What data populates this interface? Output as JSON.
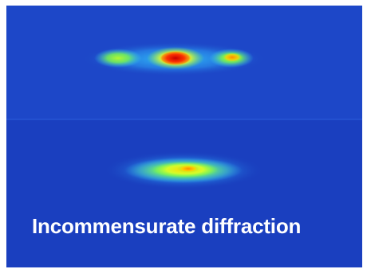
{
  "caption": {
    "text": "Incommensurate diffraction"
  },
  "colors": {
    "background": "#1a3fbf",
    "noise_light": "#5aa0ff",
    "glow_cyan": "#35d8ff",
    "glow_green": "#7dff4a",
    "glow_yellow": "#ffe000",
    "glow_orange": "#ff7a00",
    "peak_red": "#d80000",
    "caption_text": "#ffffff"
  }
}
